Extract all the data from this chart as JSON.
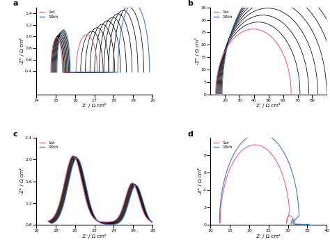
{
  "panel_a": {
    "label": "a",
    "xlim": [
      14,
      20
    ],
    "ylim": [
      0,
      1.5
    ],
    "xticks": [
      14,
      15,
      16,
      17,
      18,
      19,
      20
    ],
    "yticks": [
      0.4,
      0.6,
      0.8,
      1.0,
      1.2,
      1.4
    ],
    "xlabel": "Z' / Ω cm²",
    "ylabel": "-Z'' / Ω cm²",
    "num_curves": 10,
    "color_first": "#E8687A",
    "color_last": "#4477CC",
    "color_mid": "#111111"
  },
  "panel_b": {
    "label": "b",
    "xlim": [
      10,
      90
    ],
    "ylim": [
      0,
      35
    ],
    "xticks": [
      20,
      30,
      40,
      50,
      60,
      70,
      80
    ],
    "yticks": [
      0.0,
      5.0,
      10.0,
      15.0,
      20.0,
      25.0,
      30.0,
      35.0
    ],
    "xlabel": "Z' / Ω cm²",
    "ylabel": "-Z'' / Ω cm²",
    "num_curves": 10,
    "color_first": "#E8687A",
    "color_last": "#4477CC",
    "color_mid": "#111111"
  },
  "panel_c": {
    "label": "c",
    "xlim": [
      16,
      28
    ],
    "ylim": [
      0.8,
      2.4
    ],
    "xticks": [
      16,
      18,
      20,
      22,
      24,
      26,
      28
    ],
    "yticks": [
      0.8,
      1.2,
      1.6,
      2.0,
      2.4
    ],
    "xlabel": "Z' / Ω cm²",
    "ylabel": "-Z'' / Ω cm²",
    "num_curves": 10,
    "color_first": "#E8687A",
    "color_last": "#4477CC",
    "color_mid": "#111111"
  },
  "panel_d": {
    "label": "d",
    "xlim": [
      10,
      40
    ],
    "ylim": [
      0,
      10
    ],
    "xticks": [
      10,
      15,
      20,
      25,
      30,
      35,
      40
    ],
    "yticks": [
      0.0,
      2.0,
      4.0,
      6.0,
      8.0
    ],
    "xlabel": "Z' / Ω cm²",
    "ylabel": "-Z'' / Ω cm²",
    "num_curves": 2,
    "color_first": "#E8687A",
    "color_last": "#4477CC",
    "color_mid": "#111111"
  },
  "legend_labels": [
    "1st",
    "10th"
  ]
}
